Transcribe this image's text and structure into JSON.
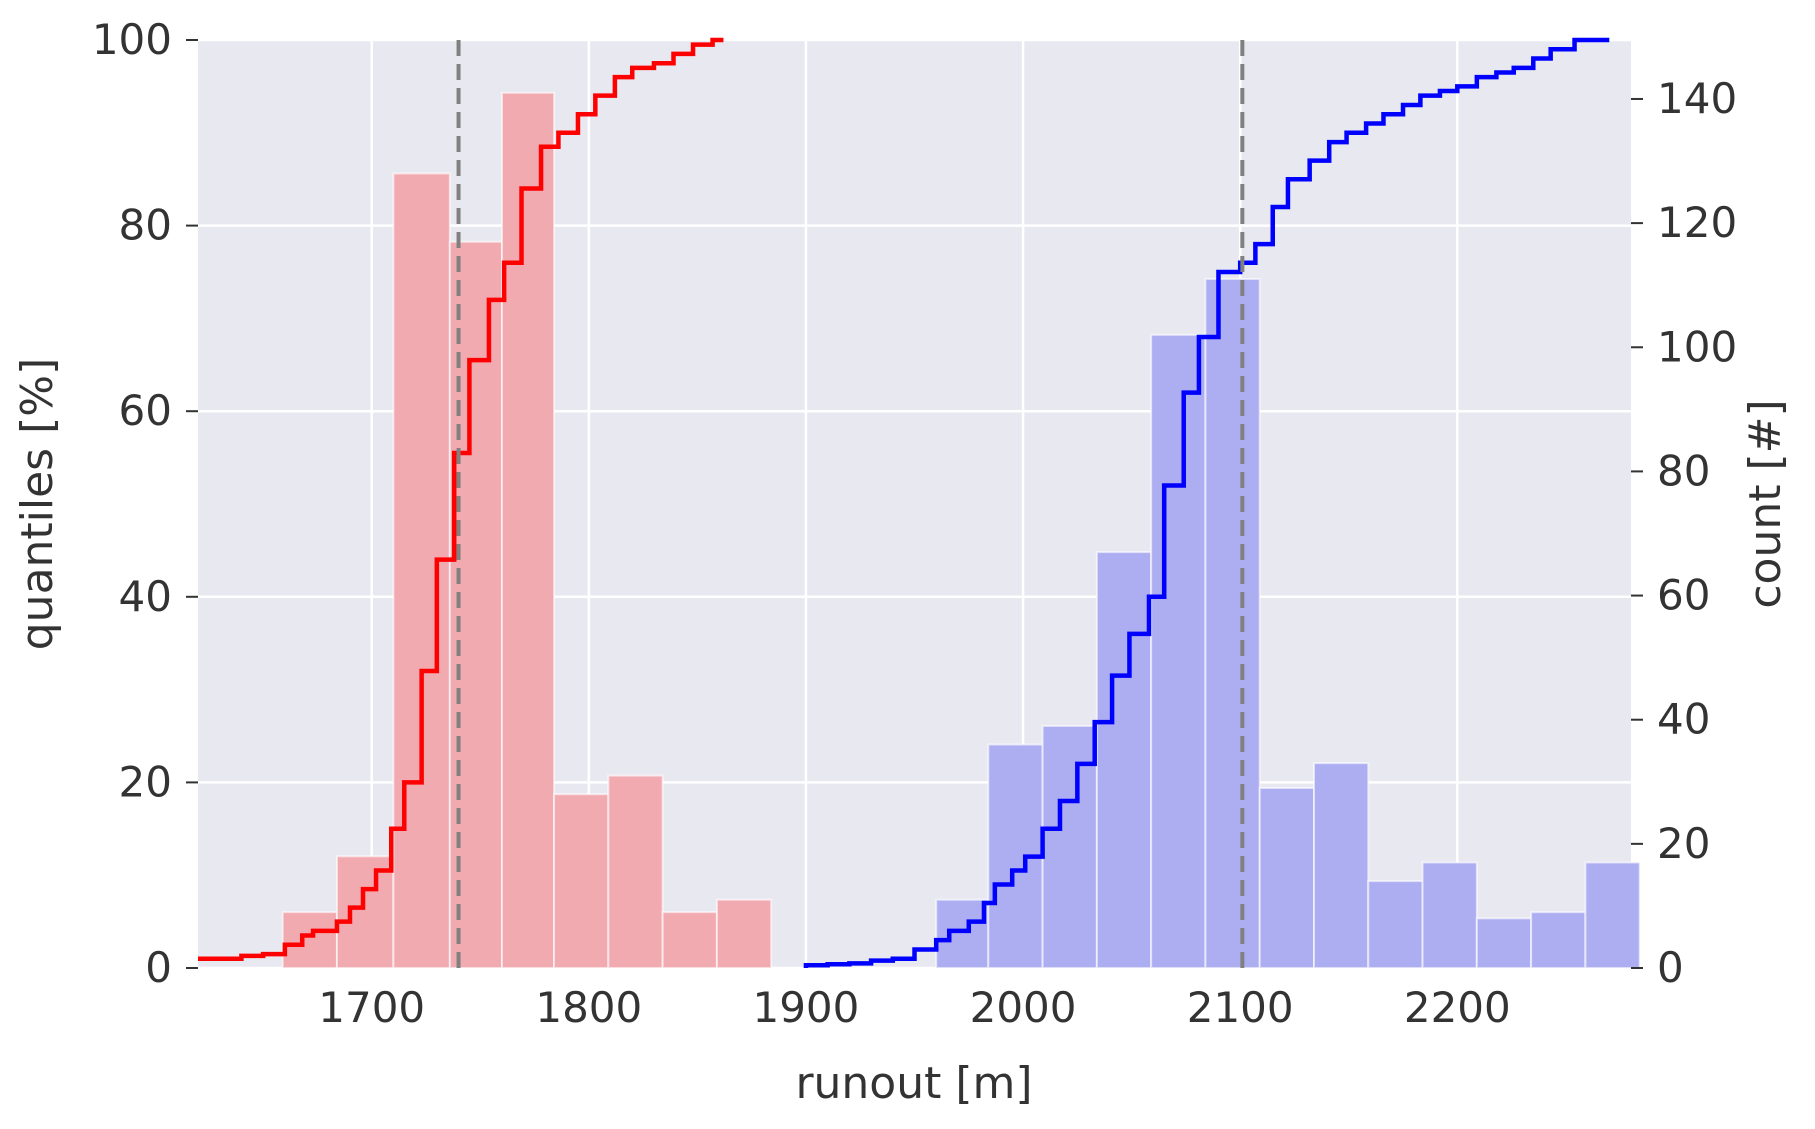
{
  "chart_data": {
    "type": "bar",
    "xlabel": "runout [m]",
    "ylabel_left": "quantiles [%]",
    "ylabel_right": "count [#]",
    "xlim": [
      1620,
      2280
    ],
    "ylim_left": [
      0,
      100
    ],
    "ylim_right": [
      0,
      149.5
    ],
    "x_ticks": [
      1700,
      1800,
      1900,
      2000,
      2100,
      2200
    ],
    "y_ticks_left": [
      0,
      20,
      40,
      60,
      80,
      100
    ],
    "y_ticks_right": [
      0,
      20,
      40,
      60,
      80,
      100,
      120,
      140
    ],
    "grid": true,
    "colors": {
      "plot_background": "#e8e8f1",
      "grid": "#ffffff",
      "red_hist": "#f2aab1",
      "blue_hist": "#adadf2",
      "red_line": "#ff0000",
      "blue_line": "#0000ff",
      "median_line": "#808080",
      "text": "#333333"
    },
    "histograms": [
      {
        "color": "red",
        "bin_edges": [
          1659,
          1684,
          1710,
          1736,
          1760,
          1784,
          1809,
          1834,
          1859,
          1884
        ],
        "counts": [
          9,
          18,
          128,
          117,
          141,
          28,
          31,
          9,
          11
        ]
      },
      {
        "color": "blue",
        "bin_edges": [
          1960,
          1984,
          2009,
          2034,
          2059,
          2084,
          2109,
          2134,
          2159,
          2184,
          2209,
          2234,
          2259,
          2284
        ],
        "counts": [
          11,
          36,
          39,
          67,
          102,
          111,
          29,
          33,
          14,
          17,
          8,
          9,
          17
        ]
      }
    ],
    "cdf_series": [
      {
        "color": "red",
        "points": [
          [
            1620,
            1
          ],
          [
            1630,
            1
          ],
          [
            1640,
            1
          ],
          [
            1650,
            1.3
          ],
          [
            1660,
            1.5
          ],
          [
            1668,
            2.5
          ],
          [
            1673,
            3.5
          ],
          [
            1684,
            4
          ],
          [
            1690,
            5
          ],
          [
            1696,
            6.5
          ],
          [
            1702,
            8.5
          ],
          [
            1709,
            10.5
          ],
          [
            1715,
            15
          ],
          [
            1723,
            20
          ],
          [
            1730,
            32
          ],
          [
            1738,
            44
          ],
          [
            1745,
            55.5
          ],
          [
            1754,
            65.5
          ],
          [
            1761,
            72
          ],
          [
            1769,
            76
          ],
          [
            1778,
            84
          ],
          [
            1786,
            88.5
          ],
          [
            1795,
            90
          ],
          [
            1803,
            92
          ],
          [
            1812,
            94
          ],
          [
            1820,
            96
          ],
          [
            1830,
            97
          ],
          [
            1839,
            97.5
          ],
          [
            1848,
            98.5
          ],
          [
            1857,
            99.5
          ],
          [
            1862,
            100
          ]
        ]
      },
      {
        "color": "blue",
        "points": [
          [
            1900,
            0
          ],
          [
            1910,
            0.3
          ],
          [
            1920,
            0.4
          ],
          [
            1930,
            0.5
          ],
          [
            1940,
            0.8
          ],
          [
            1950,
            1
          ],
          [
            1960,
            2
          ],
          [
            1966,
            3
          ],
          [
            1975,
            4
          ],
          [
            1982,
            5
          ],
          [
            1987,
            7
          ],
          [
            1995,
            9
          ],
          [
            2001,
            10.5
          ],
          [
            2009,
            12
          ],
          [
            2017,
            15
          ],
          [
            2025,
            18
          ],
          [
            2033,
            22
          ],
          [
            2041,
            26.5
          ],
          [
            2049,
            31.5
          ],
          [
            2058,
            36
          ],
          [
            2065,
            40
          ],
          [
            2074,
            52
          ],
          [
            2081,
            62
          ],
          [
            2090,
            68
          ],
          [
            2100,
            75
          ],
          [
            2107,
            76
          ],
          [
            2115,
            78
          ],
          [
            2122,
            82
          ],
          [
            2132,
            85
          ],
          [
            2141,
            87
          ],
          [
            2149,
            89
          ],
          [
            2158,
            90
          ],
          [
            2166,
            91
          ],
          [
            2175,
            92
          ],
          [
            2183,
            93
          ],
          [
            2192,
            94
          ],
          [
            2200,
            94.5
          ],
          [
            2209,
            95
          ],
          [
            2218,
            96
          ],
          [
            2226,
            96.5
          ],
          [
            2235,
            97
          ],
          [
            2243,
            98
          ],
          [
            2254,
            99
          ],
          [
            2267,
            100
          ],
          [
            2270,
            100
          ]
        ]
      }
    ],
    "median_lines": [
      1740,
      2101
    ]
  }
}
